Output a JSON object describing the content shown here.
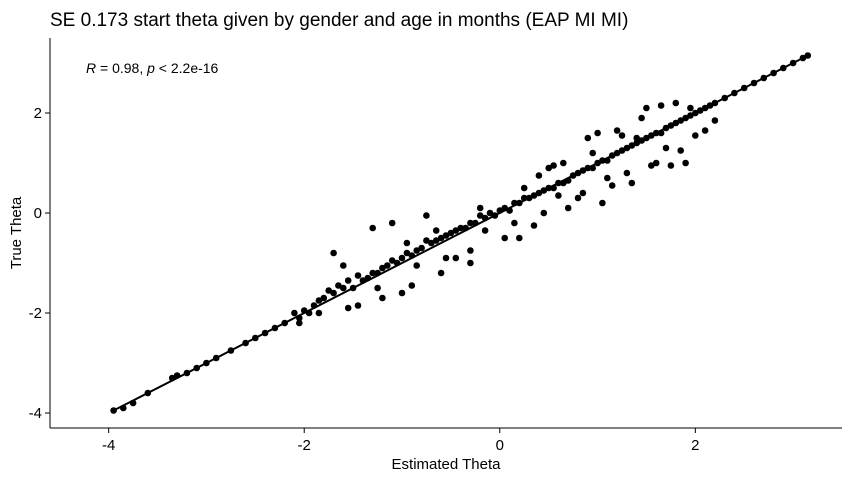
{
  "chart_data": {
    "type": "scatter",
    "title": "SE 0.173 start theta given by gender and age in months (EAP MI MI)",
    "xlabel": "Estimated Theta",
    "ylabel": "True Theta",
    "xlim": [
      -4.6,
      3.5
    ],
    "ylim": [
      -4.3,
      3.5
    ],
    "xticks": [
      -4,
      -2,
      0,
      2
    ],
    "yticks": [
      -4,
      -2,
      0,
      2
    ],
    "xtick_labels": [
      "-4",
      "-2",
      "0",
      "2"
    ],
    "ytick_labels": [
      "-4",
      "-2",
      "0",
      "2"
    ],
    "grid": false,
    "legend": "none",
    "point_color": "#000000",
    "regression_line": {
      "x": [
        -3.95,
        3.15
      ],
      "y": [
        -3.95,
        3.15
      ]
    },
    "annotation": {
      "r_symbol": "R",
      "r_value": " = 0.98, ",
      "p_symbol": "p",
      "p_value": " < 2.2e-16"
    },
    "points": {
      "x": [
        -3.95,
        -3.85,
        -3.75,
        -3.6,
        -3.35,
        -3.3,
        -3.2,
        -3.1,
        -3.0,
        -2.9,
        -2.75,
        -2.6,
        -2.5,
        -2.4,
        -2.3,
        -2.2,
        -2.1,
        -2.05,
        -2.0,
        -1.95,
        -1.9,
        -1.85,
        -1.8,
        -1.75,
        -1.7,
        -1.65,
        -1.6,
        -1.55,
        -1.5,
        -1.45,
        -1.4,
        -1.35,
        -1.3,
        -1.25,
        -1.2,
        -1.15,
        -1.1,
        -1.05,
        -1.0,
        -0.95,
        -0.9,
        -0.85,
        -0.8,
        -0.75,
        -0.7,
        -0.65,
        -0.6,
        -0.55,
        -0.5,
        -0.45,
        -0.4,
        -0.35,
        -0.3,
        -0.25,
        -0.2,
        -0.15,
        -0.1,
        -0.05,
        0.0,
        0.05,
        0.1,
        0.15,
        0.2,
        0.25,
        0.3,
        0.35,
        0.4,
        0.45,
        0.5,
        0.55,
        0.6,
        0.65,
        0.7,
        0.75,
        0.8,
        0.85,
        0.9,
        0.95,
        1.0,
        1.05,
        1.1,
        1.15,
        1.2,
        1.25,
        1.3,
        1.35,
        1.4,
        1.45,
        1.5,
        1.55,
        1.6,
        1.65,
        1.7,
        1.75,
        1.8,
        1.85,
        1.9,
        1.95,
        2.0,
        2.05,
        2.1,
        2.15,
        2.2,
        2.3,
        2.4,
        2.5,
        2.6,
        2.7,
        2.8,
        2.9,
        3.0,
        3.1,
        3.15,
        -1.7,
        -1.3,
        -1.1,
        -0.75,
        -0.45,
        0.25,
        0.5,
        0.55,
        0.9,
        1.0,
        1.2,
        1.45,
        1.5,
        1.65,
        1.8,
        1.95,
        -1.2,
        -1.0,
        -0.9,
        -0.6,
        -0.3,
        0.2,
        0.6,
        0.8,
        1.1,
        1.3,
        1.6,
        1.85,
        2.1,
        2.2,
        -2.05,
        -1.55,
        -0.85,
        -0.15,
        0.35,
        0.7,
        1.35,
        1.75,
        1.9,
        -1.85,
        -1.45,
        -1.25,
        -0.55,
        0.05,
        0.45,
        1.05,
        1.55,
        2.0,
        -0.3,
        0.15,
        0.85,
        1.15,
        1.7,
        -1.6,
        -0.95,
        -0.65,
        -0.2,
        0.4,
        0.65,
        0.95,
        1.25,
        1.4
      ],
      "y": [
        -3.95,
        -3.9,
        -3.8,
        -3.6,
        -3.3,
        -3.25,
        -3.2,
        -3.1,
        -3.0,
        -2.9,
        -2.75,
        -2.6,
        -2.5,
        -2.4,
        -2.3,
        -2.2,
        -2.0,
        -2.1,
        -1.95,
        -2.0,
        -1.85,
        -1.75,
        -1.7,
        -1.55,
        -1.6,
        -1.45,
        -1.5,
        -1.35,
        -1.5,
        -1.25,
        -1.35,
        -1.3,
        -1.2,
        -1.2,
        -1.1,
        -1.05,
        -0.95,
        -1.0,
        -0.9,
        -0.8,
        -0.85,
        -0.75,
        -0.7,
        -0.55,
        -0.6,
        -0.55,
        -0.5,
        -0.45,
        -0.4,
        -0.35,
        -0.3,
        -0.3,
        -0.2,
        -0.2,
        -0.05,
        -0.1,
        0.0,
        -0.05,
        0.05,
        0.1,
        0.05,
        0.2,
        0.2,
        0.3,
        0.3,
        0.35,
        0.4,
        0.45,
        0.5,
        0.5,
        0.6,
        0.6,
        0.65,
        0.75,
        0.8,
        0.85,
        0.9,
        0.9,
        1.0,
        1.05,
        1.05,
        1.15,
        1.2,
        1.25,
        1.3,
        1.35,
        1.4,
        1.45,
        1.5,
        1.55,
        1.6,
        1.6,
        1.7,
        1.75,
        1.8,
        1.85,
        1.9,
        1.95,
        2.0,
        2.05,
        2.1,
        2.15,
        2.2,
        2.3,
        2.4,
        2.5,
        2.6,
        2.7,
        2.8,
        2.9,
        3.0,
        3.1,
        3.15,
        -0.8,
        -0.3,
        -0.2,
        -0.05,
        -0.9,
        0.5,
        0.9,
        0.95,
        1.5,
        1.6,
        1.65,
        1.9,
        2.1,
        2.15,
        2.2,
        2.1,
        -1.7,
        -1.6,
        -1.45,
        -1.2,
        -1.0,
        -0.5,
        0.35,
        0.3,
        0.7,
        0.8,
        1.0,
        1.25,
        1.65,
        1.85,
        -2.2,
        -1.9,
        -1.05,
        -0.35,
        -0.25,
        0.1,
        0.6,
        0.95,
        1.0,
        -2.0,
        -1.85,
        -1.5,
        -0.9,
        -0.5,
        0.0,
        0.2,
        0.95,
        1.55,
        -0.75,
        -0.2,
        0.4,
        0.55,
        1.3,
        -1.05,
        -0.6,
        -0.35,
        0.1,
        0.75,
        1.0,
        1.2,
        1.55,
        1.5
      ]
    }
  }
}
